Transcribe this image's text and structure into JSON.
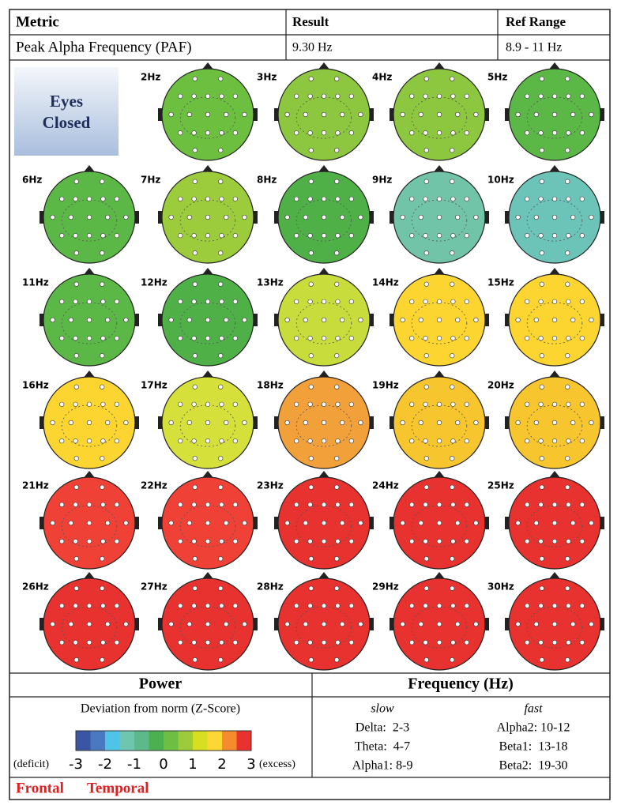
{
  "header": {
    "columns": [
      "Metric",
      "Result",
      "Ref Range"
    ],
    "row": [
      "Peak Alpha Frequency (PAF)",
      "9.30 Hz",
      "8.9 - 11 Hz"
    ]
  },
  "condition": [
    "Eyes",
    "Closed"
  ],
  "maps": [
    {
      "label": "2Hz",
      "color": "#6cbf3f"
    },
    {
      "label": "3Hz",
      "color": "#8dc63f"
    },
    {
      "label": "4Hz",
      "color": "#8dc63f"
    },
    {
      "label": "5Hz",
      "color": "#5cb846"
    },
    {
      "label": "6Hz",
      "color": "#5cb846"
    },
    {
      "label": "7Hz",
      "color": "#9ccc3c"
    },
    {
      "label": "8Hz",
      "color": "#4fb048"
    },
    {
      "label": "9Hz",
      "color": "#72c4a8"
    },
    {
      "label": "10Hz",
      "color": "#6cc4b8"
    },
    {
      "label": "11Hz",
      "color": "#5cb846"
    },
    {
      "label": "12Hz",
      "color": "#4fb048"
    },
    {
      "label": "13Hz",
      "color": "#c8dc3c"
    },
    {
      "label": "14Hz",
      "color": "#fcd530"
    },
    {
      "label": "15Hz",
      "color": "#fcd530"
    },
    {
      "label": "16Hz",
      "color": "#fcd530"
    },
    {
      "label": "17Hz",
      "color": "#d6e03a"
    },
    {
      "label": "18Hz",
      "color": "#f2a03a"
    },
    {
      "label": "19Hz",
      "color": "#f7c52e"
    },
    {
      "label": "20Hz",
      "color": "#f7c52e"
    },
    {
      "label": "21Hz",
      "color": "#ef4136"
    },
    {
      "label": "22Hz",
      "color": "#ef4136"
    },
    {
      "label": "23Hz",
      "color": "#e8322f"
    },
    {
      "label": "24Hz",
      "color": "#e8322f"
    },
    {
      "label": "25Hz",
      "color": "#e8322f"
    },
    {
      "label": "26Hz",
      "color": "#e8322f"
    },
    {
      "label": "27Hz",
      "color": "#e8322f"
    },
    {
      "label": "28Hz",
      "color": "#e8322f"
    },
    {
      "label": "29Hz",
      "color": "#e8322f"
    },
    {
      "label": "30Hz",
      "color": "#e8322f"
    }
  ],
  "legend": {
    "title": "Power",
    "subtitle": "Deviation from norm (Z-Score)",
    "colors": [
      "#3a55a4",
      "#4a79c0",
      "#4fc3e8",
      "#6fc6b0",
      "#5db88a",
      "#4caf50",
      "#6ebe44",
      "#9ccc3c",
      "#d7df23",
      "#fdd835",
      "#f68b2e",
      "#e8322f"
    ],
    "ticks": [
      -3,
      -2,
      -1,
      0,
      1,
      2,
      3
    ],
    "low_label": "(deficit)",
    "high_label": "(excess)"
  },
  "frequency": {
    "title": "Frequency (Hz)",
    "columns": [
      {
        "heading": "slow",
        "bands": [
          "Delta:  2-3",
          "Theta:  4-7",
          "Alpha1: 8-9"
        ]
      },
      {
        "heading": "fast",
        "bands": [
          "Alpha2: 10-12",
          "Beta1:  13-18",
          "Beta2:  19-30"
        ]
      }
    ]
  },
  "footer": [
    "Frontal",
    "Temporal"
  ]
}
